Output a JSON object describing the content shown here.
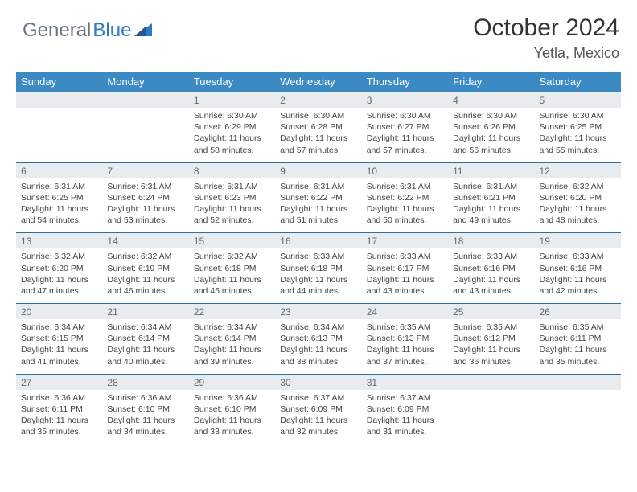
{
  "brand": {
    "part1": "General",
    "part2": "Blue"
  },
  "title": "October 2024",
  "location": "Yetla, Mexico",
  "colors": {
    "header_bg": "#3b8ac4",
    "header_text": "#ffffff",
    "daynum_bg": "#e9ecef",
    "daynum_text": "#5a6a78",
    "week_border": "#2d6fa5",
    "body_text": "#444444",
    "brand_gray": "#6b7680",
    "brand_blue": "#2d7bc4"
  },
  "dow": [
    "Sunday",
    "Monday",
    "Tuesday",
    "Wednesday",
    "Thursday",
    "Friday",
    "Saturday"
  ],
  "weeks": [
    [
      {
        "n": "",
        "sr": "",
        "ss": "",
        "dl": ""
      },
      {
        "n": "",
        "sr": "",
        "ss": "",
        "dl": ""
      },
      {
        "n": "1",
        "sr": "Sunrise: 6:30 AM",
        "ss": "Sunset: 6:29 PM",
        "dl": "Daylight: 11 hours and 58 minutes."
      },
      {
        "n": "2",
        "sr": "Sunrise: 6:30 AM",
        "ss": "Sunset: 6:28 PM",
        "dl": "Daylight: 11 hours and 57 minutes."
      },
      {
        "n": "3",
        "sr": "Sunrise: 6:30 AM",
        "ss": "Sunset: 6:27 PM",
        "dl": "Daylight: 11 hours and 57 minutes."
      },
      {
        "n": "4",
        "sr": "Sunrise: 6:30 AM",
        "ss": "Sunset: 6:26 PM",
        "dl": "Daylight: 11 hours and 56 minutes."
      },
      {
        "n": "5",
        "sr": "Sunrise: 6:30 AM",
        "ss": "Sunset: 6:25 PM",
        "dl": "Daylight: 11 hours and 55 minutes."
      }
    ],
    [
      {
        "n": "6",
        "sr": "Sunrise: 6:31 AM",
        "ss": "Sunset: 6:25 PM",
        "dl": "Daylight: 11 hours and 54 minutes."
      },
      {
        "n": "7",
        "sr": "Sunrise: 6:31 AM",
        "ss": "Sunset: 6:24 PM",
        "dl": "Daylight: 11 hours and 53 minutes."
      },
      {
        "n": "8",
        "sr": "Sunrise: 6:31 AM",
        "ss": "Sunset: 6:23 PM",
        "dl": "Daylight: 11 hours and 52 minutes."
      },
      {
        "n": "9",
        "sr": "Sunrise: 6:31 AM",
        "ss": "Sunset: 6:22 PM",
        "dl": "Daylight: 11 hours and 51 minutes."
      },
      {
        "n": "10",
        "sr": "Sunrise: 6:31 AM",
        "ss": "Sunset: 6:22 PM",
        "dl": "Daylight: 11 hours and 50 minutes."
      },
      {
        "n": "11",
        "sr": "Sunrise: 6:31 AM",
        "ss": "Sunset: 6:21 PM",
        "dl": "Daylight: 11 hours and 49 minutes."
      },
      {
        "n": "12",
        "sr": "Sunrise: 6:32 AM",
        "ss": "Sunset: 6:20 PM",
        "dl": "Daylight: 11 hours and 48 minutes."
      }
    ],
    [
      {
        "n": "13",
        "sr": "Sunrise: 6:32 AM",
        "ss": "Sunset: 6:20 PM",
        "dl": "Daylight: 11 hours and 47 minutes."
      },
      {
        "n": "14",
        "sr": "Sunrise: 6:32 AM",
        "ss": "Sunset: 6:19 PM",
        "dl": "Daylight: 11 hours and 46 minutes."
      },
      {
        "n": "15",
        "sr": "Sunrise: 6:32 AM",
        "ss": "Sunset: 6:18 PM",
        "dl": "Daylight: 11 hours and 45 minutes."
      },
      {
        "n": "16",
        "sr": "Sunrise: 6:33 AM",
        "ss": "Sunset: 6:18 PM",
        "dl": "Daylight: 11 hours and 44 minutes."
      },
      {
        "n": "17",
        "sr": "Sunrise: 6:33 AM",
        "ss": "Sunset: 6:17 PM",
        "dl": "Daylight: 11 hours and 43 minutes."
      },
      {
        "n": "18",
        "sr": "Sunrise: 6:33 AM",
        "ss": "Sunset: 6:16 PM",
        "dl": "Daylight: 11 hours and 43 minutes."
      },
      {
        "n": "19",
        "sr": "Sunrise: 6:33 AM",
        "ss": "Sunset: 6:16 PM",
        "dl": "Daylight: 11 hours and 42 minutes."
      }
    ],
    [
      {
        "n": "20",
        "sr": "Sunrise: 6:34 AM",
        "ss": "Sunset: 6:15 PM",
        "dl": "Daylight: 11 hours and 41 minutes."
      },
      {
        "n": "21",
        "sr": "Sunrise: 6:34 AM",
        "ss": "Sunset: 6:14 PM",
        "dl": "Daylight: 11 hours and 40 minutes."
      },
      {
        "n": "22",
        "sr": "Sunrise: 6:34 AM",
        "ss": "Sunset: 6:14 PM",
        "dl": "Daylight: 11 hours and 39 minutes."
      },
      {
        "n": "23",
        "sr": "Sunrise: 6:34 AM",
        "ss": "Sunset: 6:13 PM",
        "dl": "Daylight: 11 hours and 38 minutes."
      },
      {
        "n": "24",
        "sr": "Sunrise: 6:35 AM",
        "ss": "Sunset: 6:13 PM",
        "dl": "Daylight: 11 hours and 37 minutes."
      },
      {
        "n": "25",
        "sr": "Sunrise: 6:35 AM",
        "ss": "Sunset: 6:12 PM",
        "dl": "Daylight: 11 hours and 36 minutes."
      },
      {
        "n": "26",
        "sr": "Sunrise: 6:35 AM",
        "ss": "Sunset: 6:11 PM",
        "dl": "Daylight: 11 hours and 35 minutes."
      }
    ],
    [
      {
        "n": "27",
        "sr": "Sunrise: 6:36 AM",
        "ss": "Sunset: 6:11 PM",
        "dl": "Daylight: 11 hours and 35 minutes."
      },
      {
        "n": "28",
        "sr": "Sunrise: 6:36 AM",
        "ss": "Sunset: 6:10 PM",
        "dl": "Daylight: 11 hours and 34 minutes."
      },
      {
        "n": "29",
        "sr": "Sunrise: 6:36 AM",
        "ss": "Sunset: 6:10 PM",
        "dl": "Daylight: 11 hours and 33 minutes."
      },
      {
        "n": "30",
        "sr": "Sunrise: 6:37 AM",
        "ss": "Sunset: 6:09 PM",
        "dl": "Daylight: 11 hours and 32 minutes."
      },
      {
        "n": "31",
        "sr": "Sunrise: 6:37 AM",
        "ss": "Sunset: 6:09 PM",
        "dl": "Daylight: 11 hours and 31 minutes."
      },
      {
        "n": "",
        "sr": "",
        "ss": "",
        "dl": ""
      },
      {
        "n": "",
        "sr": "",
        "ss": "",
        "dl": ""
      }
    ]
  ]
}
